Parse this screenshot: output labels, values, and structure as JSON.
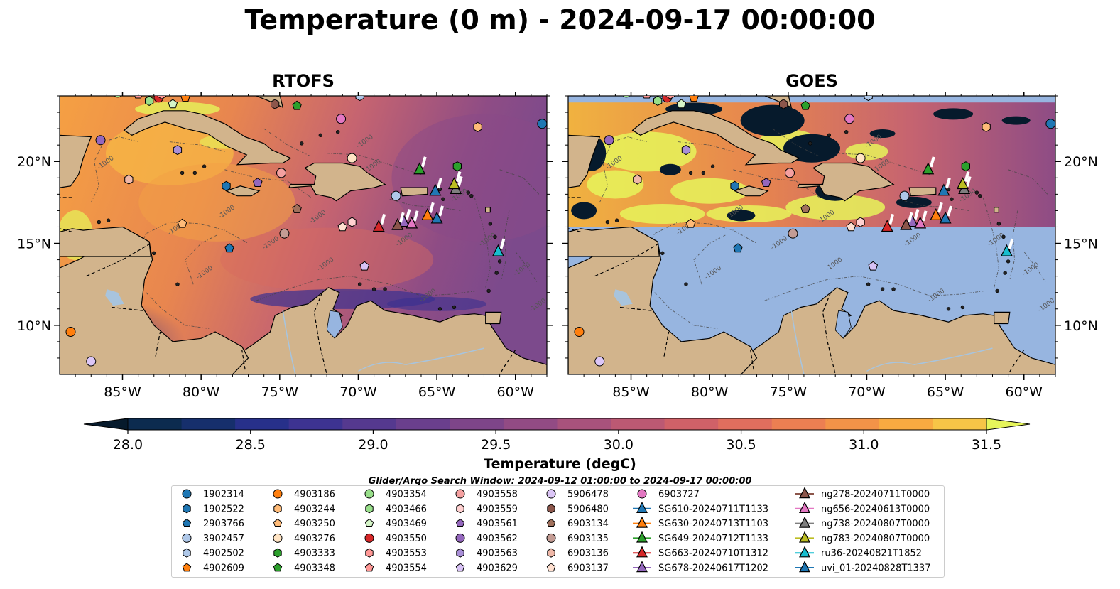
{
  "title": "Temperature (0 m) - 2024-09-17 00:00:00",
  "panels": [
    {
      "name": "RTOFS",
      "type": "model"
    },
    {
      "name": "GOES",
      "type": "satellite"
    }
  ],
  "axes": {
    "lon_range": [
      -89.0,
      -58.0
    ],
    "lat_range": [
      7.0,
      24.0
    ],
    "lon_ticks": [
      -85,
      -80,
      -75,
      -70,
      -65,
      -60
    ],
    "lon_labels": [
      "85°W",
      "80°W",
      "75°W",
      "70°W",
      "65°W",
      "60°W"
    ],
    "lat_ticks": [
      10,
      15,
      20
    ],
    "lat_labels": [
      "10°N",
      "15°N",
      "20°N"
    ],
    "bathymetry_contour_label": "-1000"
  },
  "colorbar": {
    "label": "Temperature (degC)",
    "min": 28.0,
    "max": 31.5,
    "step": 0.25,
    "tick_values": [
      28.0,
      28.5,
      29.0,
      29.5,
      30.0,
      30.5,
      31.0,
      31.5
    ],
    "tick_labels": [
      "28.0",
      "28.5",
      "29.0",
      "29.5",
      "30.0",
      "30.5",
      "31.0",
      "31.5"
    ],
    "under_color": "#061a2c",
    "over_color": "#e6f55a",
    "colors": [
      "#0c2b4f",
      "#162f6c",
      "#27308a",
      "#3d3391",
      "#55398f",
      "#6a3f8d",
      "#7e4589",
      "#924b84",
      "#a8527c",
      "#bc5973",
      "#d06168",
      "#e06e5e",
      "#ec7f52",
      "#f39348",
      "#f8aa41",
      "#f7c547"
    ]
  },
  "search_window": "Glider/Argo Search Window: 2024-09-12 01:00:00 to 2024-09-17 00:00:00",
  "colors": {
    "land": "#d2b48c",
    "nodata": "#97b5e0",
    "clouds": "#061a2c",
    "rivers": "#a8c4dd"
  },
  "argo_floats": [
    {
      "id": "1902314",
      "marker": "circle",
      "color": "#1f77b4",
      "lon": -58.3,
      "lat": 22.3
    },
    {
      "id": "1902522",
      "marker": "hexagon",
      "color": "#1f77b4",
      "lon": -78.4,
      "lat": 18.5
    },
    {
      "id": "2903766",
      "marker": "pentagon",
      "color": "#1f77b4",
      "lon": -78.2,
      "lat": 14.7
    },
    {
      "id": "3902457",
      "marker": "circle",
      "color": "#aec7e8",
      "lon": -67.6,
      "lat": 17.9
    },
    {
      "id": "4902502",
      "marker": "hexagon",
      "color": "#aec7e8",
      "lon": -69.9,
      "lat": 24.0
    },
    {
      "id": "4902609",
      "marker": "pentagon",
      "color": "#ff7f0e",
      "lon": -81.0,
      "lat": 23.9
    },
    {
      "id": "4903186",
      "marker": "circle",
      "color": "#ff7f0e",
      "lon": -88.3,
      "lat": 9.6
    },
    {
      "id": "4903244",
      "marker": "hexagon",
      "color": "#ffbb78",
      "lon": -62.4,
      "lat": 22.1
    },
    {
      "id": "4903250",
      "marker": "pentagon",
      "color": "#ffbb78",
      "lon": -81.2,
      "lat": 16.2
    },
    {
      "id": "4903276",
      "marker": "circle",
      "color": "#ffe4c4",
      "lon": -70.4,
      "lat": 20.2
    },
    {
      "id": "4903333",
      "marker": "hexagon",
      "color": "#2ca02c",
      "lon": -63.7,
      "lat": 19.7
    },
    {
      "id": "4903348",
      "marker": "pentagon",
      "color": "#2ca02c",
      "lon": -73.9,
      "lat": 23.4
    },
    {
      "id": "4903354",
      "marker": "circle",
      "color": "#98df8a",
      "lon": -85.3,
      "lat": 24.2
    },
    {
      "id": "4903466",
      "marker": "hexagon",
      "color": "#98df8a",
      "lon": -83.3,
      "lat": 23.7
    },
    {
      "id": "4903469",
      "marker": "pentagon",
      "color": "#d5f5c8",
      "lon": -81.8,
      "lat": 23.5
    },
    {
      "id": "4903550",
      "marker": "circle",
      "color": "#d62728",
      "lon": -82.7,
      "lat": 23.9
    },
    {
      "id": "4903553",
      "marker": "hexagon",
      "color": "#ff9896",
      "lon": -82.5,
      "lat": 24.1
    },
    {
      "id": "4903554",
      "marker": "pentagon",
      "color": "#ff9896",
      "lon": -84.0,
      "lat": 24.1
    },
    {
      "id": "4903558",
      "marker": "circle",
      "color": "#f4a0a0",
      "lon": -74.9,
      "lat": 19.3
    },
    {
      "id": "4903559",
      "marker": "hexagon",
      "color": "#ffd0d0",
      "lon": -70.4,
      "lat": 16.3
    },
    {
      "id": "4903561",
      "marker": "pentagon",
      "color": "#9467bd",
      "lon": -76.4,
      "lat": 18.7
    },
    {
      "id": "4903562",
      "marker": "circle",
      "color": "#9467bd",
      "lon": -86.4,
      "lat": 21.3
    },
    {
      "id": "4903563",
      "marker": "hexagon",
      "color": "#a98fd8",
      "lon": -81.5,
      "lat": 20.7
    },
    {
      "id": "4903629",
      "marker": "pentagon",
      "color": "#d8c2f5",
      "lon": -69.6,
      "lat": 13.6
    },
    {
      "id": "5906478",
      "marker": "circle",
      "color": "#dcc6f7",
      "lon": -87.0,
      "lat": 7.8
    },
    {
      "id": "5906480",
      "marker": "hexagon",
      "color": "#8c564b",
      "lon": -75.3,
      "lat": 23.5
    },
    {
      "id": "6903134",
      "marker": "pentagon",
      "color": "#a0705c",
      "lon": -73.9,
      "lat": 17.1
    },
    {
      "id": "6903135",
      "marker": "circle",
      "color": "#c49c94",
      "lon": -74.7,
      "lat": 15.6
    },
    {
      "id": "6903136",
      "marker": "hexagon",
      "color": "#f0b8a8",
      "lon": -84.6,
      "lat": 18.9
    },
    {
      "id": "6903137",
      "marker": "pentagon",
      "color": "#ffe0d0",
      "lon": -71.0,
      "lat": 16.0
    },
    {
      "id": "6903727",
      "marker": "circle",
      "color": "#e377c2",
      "lon": -71.1,
      "lat": 22.6
    }
  ],
  "gliders": [
    {
      "id": "SG610-20240711T1133",
      "color": "#1f77b4",
      "lon": -65.1,
      "lat": 18.2
    },
    {
      "id": "SG630-20240713T1103",
      "color": "#ff7f0e",
      "lon": -65.6,
      "lat": 16.7
    },
    {
      "id": "SG649-20240712T1133",
      "color": "#2ca02c",
      "lon": -66.1,
      "lat": 19.5
    },
    {
      "id": "SG663-20240710T1312",
      "color": "#d62728",
      "lon": -68.7,
      "lat": 16.0
    },
    {
      "id": "SG678-20240617T1202",
      "color": "#9467bd",
      "lon": -67.1,
      "lat": 16.3
    },
    {
      "id": "ng278-20240711T0000",
      "color": "#8c564b",
      "lon": -67.5,
      "lat": 16.1
    },
    {
      "id": "ng656-20240613T0000",
      "color": "#e377c2",
      "lon": -66.6,
      "lat": 16.2
    },
    {
      "id": "ng738-20240807T0000",
      "color": "#7f7f7f",
      "lon": -63.8,
      "lat": 18.3
    },
    {
      "id": "ng783-20240807T0000",
      "color": "#bcbd22",
      "lon": -63.9,
      "lat": 18.6
    },
    {
      "id": "ru36-20240821T1852",
      "color": "#17becf",
      "lon": -61.1,
      "lat": 14.5
    },
    {
      "id": "uvi_01-20240828T1337",
      "color": "#1f77b4",
      "lon": -65.0,
      "lat": 16.5
    }
  ]
}
